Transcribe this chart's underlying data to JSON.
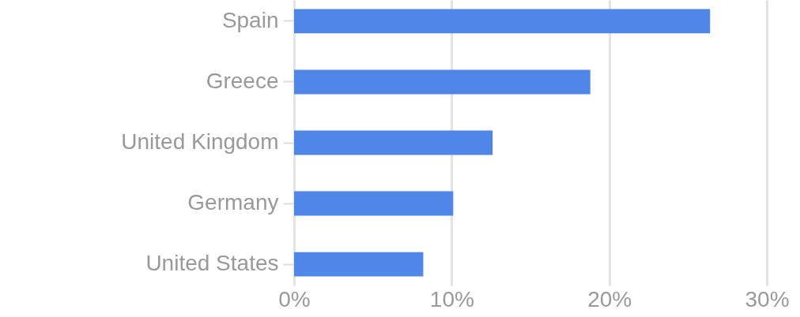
{
  "chart_data": {
    "type": "bar",
    "orientation": "horizontal",
    "categories": [
      "Spain",
      "Greece",
      "United Kingdom",
      "Germany",
      "United States"
    ],
    "values": [
      26.4,
      18.8,
      12.6,
      10.1,
      8.2
    ],
    "color": "#4f86e8",
    "xlim": [
      0,
      30
    ],
    "xticks": [
      {
        "value": 0,
        "label": "0%"
      },
      {
        "value": 10,
        "label": "10%"
      },
      {
        "value": 20,
        "label": "20%"
      },
      {
        "value": 30,
        "label": "30%"
      }
    ],
    "grid": "x"
  }
}
